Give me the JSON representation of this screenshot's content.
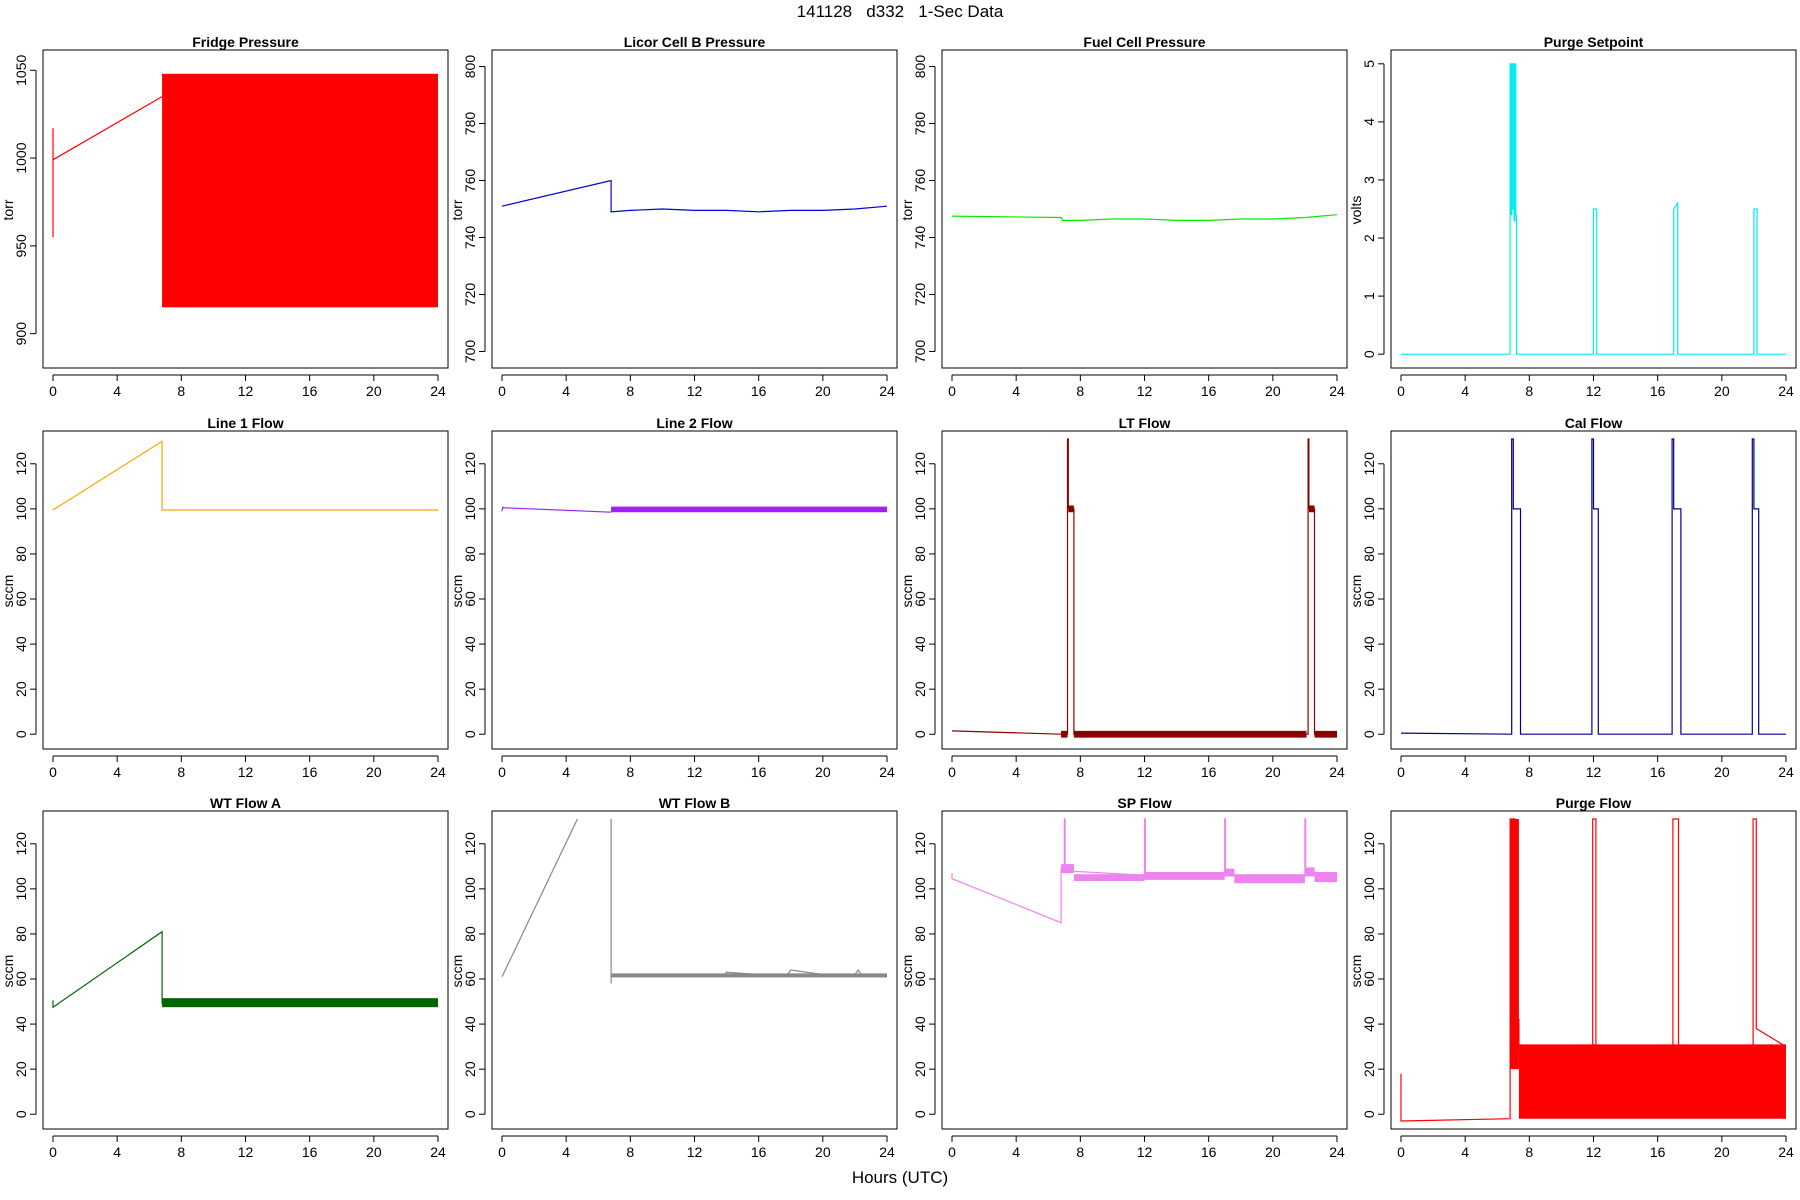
{
  "title": "141128   d332   1-Sec Data",
  "xlabel": "Hours (UTC)",
  "chart_data": [
    {
      "type": "line",
      "title": "Fridge Pressure",
      "ylabel": "torr",
      "color": "#ff0000",
      "xlim": [
        0,
        24
      ],
      "ylim": [
        885,
        1057
      ],
      "yticks": [
        900,
        950,
        1000,
        1050
      ],
      "xticks": [
        0,
        4,
        8,
        12,
        16,
        20,
        24
      ],
      "series": [
        {
          "x": [
            0,
            0,
            0,
            6.8
          ],
          "y": [
            955,
            1017,
            999,
            1035
          ]
        },
        {
          "type": "band",
          "x": [
            6.8,
            24
          ],
          "ymin": 915,
          "ymax": 1048
        }
      ]
    },
    {
      "type": "line",
      "title": "Licor Cell B Pressure",
      "ylabel": "torr",
      "color": "#0000dd",
      "xlim": [
        0,
        24
      ],
      "ylim": [
        697,
        803
      ],
      "yticks": [
        700,
        720,
        740,
        760,
        780,
        800
      ],
      "xticks": [
        0,
        4,
        8,
        12,
        16,
        20,
        24
      ],
      "series": [
        {
          "x": [
            0,
            6.8,
            6.8,
            8,
            10,
            12,
            14,
            16,
            18,
            20,
            22,
            24
          ],
          "y": [
            751,
            760,
            749,
            749.5,
            750,
            749.5,
            749.5,
            749,
            749.5,
            749.5,
            750,
            751
          ]
        }
      ]
    },
    {
      "type": "line",
      "title": "Fuel Cell Pressure",
      "ylabel": "torr",
      "color": "#00ee00",
      "xlim": [
        0,
        24
      ],
      "ylim": [
        697,
        803
      ],
      "yticks": [
        700,
        720,
        740,
        760,
        780,
        800
      ],
      "xticks": [
        0,
        4,
        8,
        12,
        16,
        20,
        24
      ],
      "series": [
        {
          "x": [
            0,
            6.8,
            6.9,
            8,
            10,
            12,
            14,
            16,
            18,
            20,
            22,
            24
          ],
          "y": [
            747.5,
            747,
            746,
            746,
            746.5,
            746.5,
            746,
            746,
            746.5,
            746.5,
            747,
            748
          ]
        }
      ]
    },
    {
      "type": "line",
      "title": "Purge Setpoint",
      "ylabel": "volts",
      "color": "#00eeee",
      "xlim": [
        0,
        24
      ],
      "ylim": [
        -0.1,
        5.1
      ],
      "yticks": [
        0,
        1,
        2,
        3,
        4,
        5
      ],
      "xticks": [
        0,
        4,
        8,
        12,
        16,
        20,
        24
      ],
      "series": [
        {
          "x": [
            0,
            6.8,
            6.8,
            6.85,
            6.85,
            6.9,
            6.9,
            6.95,
            6.95,
            7.0,
            7.0,
            7.05,
            7.05,
            7.1,
            7.1,
            7.15,
            7.15,
            7.2,
            7.2,
            7.25,
            7.25,
            12.0,
            12.0,
            12.2,
            12.2,
            17.0,
            17.0,
            17.25,
            17.25,
            22.0,
            22.0,
            22.2,
            22.2,
            24
          ],
          "y": [
            0,
            0,
            5,
            5,
            2.4,
            2.4,
            5,
            5,
            2.5,
            2.5,
            5,
            5,
            2.3,
            2.3,
            5,
            5,
            2.4,
            2.4,
            0,
            0,
            0,
            0,
            2.5,
            2.5,
            0,
            0,
            2.5,
            2.6,
            0,
            0,
            2.5,
            2.5,
            0,
            0
          ]
        }
      ]
    },
    {
      "type": "line",
      "title": "Line 1 Flow",
      "ylabel": "sccm",
      "color": "#ffa500",
      "xlim": [
        0,
        24
      ],
      "ylim": [
        -3,
        131
      ],
      "yticks": [
        0,
        20,
        40,
        60,
        80,
        100,
        120
      ],
      "xticks": [
        0,
        4,
        8,
        12,
        16,
        20,
        24
      ],
      "series": [
        {
          "x": [
            0,
            6.8,
            6.8,
            24
          ],
          "y": [
            99.5,
            130,
            99.5,
            99.5
          ]
        }
      ]
    },
    {
      "type": "line",
      "title": "Line 2 Flow",
      "ylabel": "sccm",
      "color": "#a020f0",
      "xlim": [
        0,
        24
      ],
      "ylim": [
        -3,
        131
      ],
      "yticks": [
        0,
        20,
        40,
        60,
        80,
        100,
        120
      ],
      "xticks": [
        0,
        4,
        8,
        12,
        16,
        20,
        24
      ],
      "series": [
        {
          "x": [
            0,
            0.05,
            0.05,
            6.8
          ],
          "y": [
            99,
            101,
            100.5,
            98.5
          ]
        },
        {
          "type": "band",
          "x": [
            6.8,
            24
          ],
          "ymin": 98.5,
          "ymax": 101
        }
      ]
    },
    {
      "type": "line",
      "title": "LT Flow",
      "ylabel": "sccm",
      "color": "#8b0000",
      "xlim": [
        0,
        24
      ],
      "ylim": [
        -3,
        131
      ],
      "yticks": [
        0,
        20,
        40,
        60,
        80,
        100,
        120
      ],
      "xticks": [
        0,
        4,
        8,
        12,
        16,
        20,
        24
      ],
      "series": [
        {
          "x": [
            0,
            6.8,
            7.2,
            7.2,
            7.25,
            7.25,
            7.6,
            7.6,
            22.2,
            22.2,
            22.25,
            22.25,
            22.6,
            22.6,
            24
          ],
          "y": [
            1.5,
            0,
            0,
            131,
            131,
            100,
            100,
            0,
            0,
            131,
            131,
            100,
            100,
            0,
            0
          ]
        },
        {
          "type": "band",
          "x": [
            6.8,
            7.2
          ],
          "ymin": -1.5,
          "ymax": 1.5
        },
        {
          "type": "band",
          "x": [
            7.6,
            22.1
          ],
          "ymin": -1.5,
          "ymax": 1.5
        },
        {
          "type": "band",
          "x": [
            22.6,
            24
          ],
          "ymin": -1.5,
          "ymax": 1.5
        },
        {
          "type": "band",
          "x": [
            7.25,
            7.6
          ],
          "ymin": 98.5,
          "ymax": 101.5
        },
        {
          "type": "band",
          "x": [
            22.25,
            22.6
          ],
          "ymin": 98.5,
          "ymax": 101.5
        }
      ]
    },
    {
      "type": "line",
      "title": "Cal Flow",
      "ylabel": "sccm",
      "color": "#00008b",
      "xlim": [
        0,
        24
      ],
      "ylim": [
        -3,
        131
      ],
      "yticks": [
        0,
        20,
        40,
        60,
        80,
        100,
        120
      ],
      "xticks": [
        0,
        4,
        8,
        12,
        16,
        20,
        24
      ],
      "series": [
        {
          "x": [
            0,
            6.9,
            6.9,
            7.0,
            7.0,
            7.45,
            7.45,
            11.9,
            11.9,
            12.0,
            12.0,
            12.3,
            12.3,
            16.9,
            16.9,
            17.0,
            17.0,
            17.45,
            17.45,
            21.9,
            21.9,
            22.0,
            22.0,
            22.3,
            22.3,
            24
          ],
          "y": [
            0.5,
            0,
            131,
            131,
            100,
            100,
            0,
            0,
            131,
            131,
            100,
            100,
            0,
            0,
            131,
            131,
            100,
            100,
            0,
            0,
            131,
            131,
            100,
            100,
            0,
            0
          ]
        }
      ]
    },
    {
      "type": "line",
      "title": "WT Flow A",
      "ylabel": "sccm",
      "color": "#006400",
      "xlim": [
        0,
        24
      ],
      "ylim": [
        -3,
        131
      ],
      "yticks": [
        0,
        20,
        40,
        60,
        80,
        100,
        120
      ],
      "xticks": [
        0,
        4,
        8,
        12,
        16,
        20,
        24
      ],
      "series": [
        {
          "x": [
            0,
            0,
            0,
            6.8,
            6.8
          ],
          "y": [
            48,
            50.5,
            47.5,
            81,
            49
          ]
        },
        {
          "type": "band",
          "x": [
            6.8,
            24
          ],
          "ymin": 47.5,
          "ymax": 51.5
        }
      ]
    },
    {
      "type": "line",
      "title": "WT Flow B",
      "ylabel": "sccm",
      "color": "#888888",
      "xlim": [
        0,
        24
      ],
      "ylim": [
        -3,
        131
      ],
      "yticks": [
        0,
        20,
        40,
        60,
        80,
        100,
        120
      ],
      "xticks": [
        0,
        4,
        8,
        12,
        16,
        20,
        24
      ],
      "series": [
        {
          "x": [
            0,
            4.7
          ],
          "y": [
            61,
            131
          ]
        },
        {
          "x": [
            6.8,
            6.8,
            6.8
          ],
          "y": [
            131,
            58,
            62
          ]
        },
        {
          "x": [
            6.8,
            8,
            10,
            12,
            13.8,
            14,
            16,
            17.8,
            18,
            20,
            22,
            22.2,
            22.4,
            24
          ],
          "y": [
            61.5,
            62,
            61.5,
            62,
            61.5,
            63,
            62,
            62,
            64,
            62,
            62,
            64,
            62,
            61.5
          ]
        },
        {
          "type": "band",
          "x": [
            6.8,
            24
          ],
          "ymin": 60.7,
          "ymax": 62.5
        }
      ]
    },
    {
      "type": "line",
      "title": "SP Flow",
      "ylabel": "sccm",
      "color": "#ee82ee",
      "xlim": [
        0,
        24
      ],
      "ylim": [
        -3,
        131
      ],
      "yticks": [
        0,
        20,
        40,
        60,
        80,
        100,
        120
      ],
      "xticks": [
        0,
        4,
        8,
        12,
        16,
        20,
        24
      ],
      "series": [
        {
          "x": [
            0,
            0,
            0,
            6.8,
            6.8,
            7.0,
            7.0,
            7.05,
            7.05,
            12.0,
            12.0,
            12.05,
            12.05,
            17.0,
            17.0,
            17.05,
            17.05,
            22.0,
            22.0,
            22.05,
            22.05,
            24
          ],
          "y": [
            107,
            104.5,
            104.5,
            85,
            109,
            109,
            131,
            131,
            108,
            106,
            131,
            131,
            107,
            107,
            131,
            131,
            106,
            106,
            131,
            131,
            107,
            105
          ]
        },
        {
          "type": "band",
          "x": [
            6.8,
            7.6
          ],
          "ymin": 107,
          "ymax": 111
        },
        {
          "type": "band",
          "x": [
            7.6,
            12
          ],
          "ymin": 103.5,
          "ymax": 106.5
        },
        {
          "type": "band",
          "x": [
            12,
            17
          ],
          "ymin": 104,
          "ymax": 107.5
        },
        {
          "type": "band",
          "x": [
            17,
            17.6
          ],
          "ymin": 105.5,
          "ymax": 109
        },
        {
          "type": "band",
          "x": [
            17.6,
            22
          ],
          "ymin": 102.5,
          "ymax": 106.5
        },
        {
          "type": "band",
          "x": [
            22,
            22.6
          ],
          "ymin": 105.5,
          "ymax": 109.5
        },
        {
          "type": "band",
          "x": [
            22.6,
            24
          ],
          "ymin": 103,
          "ymax": 107.5
        }
      ]
    },
    {
      "type": "line",
      "title": "Purge Flow",
      "ylabel": "sccm",
      "color": "#ff0000",
      "xlim": [
        0,
        24
      ],
      "ylim": [
        -3,
        131
      ],
      "yticks": [
        0,
        20,
        40,
        60,
        80,
        100,
        120
      ],
      "xticks": [
        0,
        4,
        8,
        12,
        16,
        20,
        24
      ],
      "series": [
        {
          "x": [
            0,
            0,
            0,
            6.8,
            6.8,
            7.1,
            7.1,
            7.35,
            7.35,
            11.95,
            11.95,
            12.15,
            12.15,
            16.95,
            16.95,
            17.3,
            17.3,
            21.95,
            21.95,
            22.15,
            22.15,
            24
          ],
          "y": [
            18,
            -3,
            -3,
            -2,
            131,
            131,
            42,
            42,
            28,
            28,
            131,
            131,
            28,
            28,
            131,
            131,
            30,
            30,
            131,
            131,
            38,
            30
          ]
        },
        {
          "type": "band",
          "x": [
            6.8,
            7.35
          ],
          "ymin": 20,
          "ymax": 131
        },
        {
          "type": "band",
          "x": [
            7.35,
            24
          ],
          "ymin": -2,
          "ymax": 31
        }
      ]
    }
  ]
}
